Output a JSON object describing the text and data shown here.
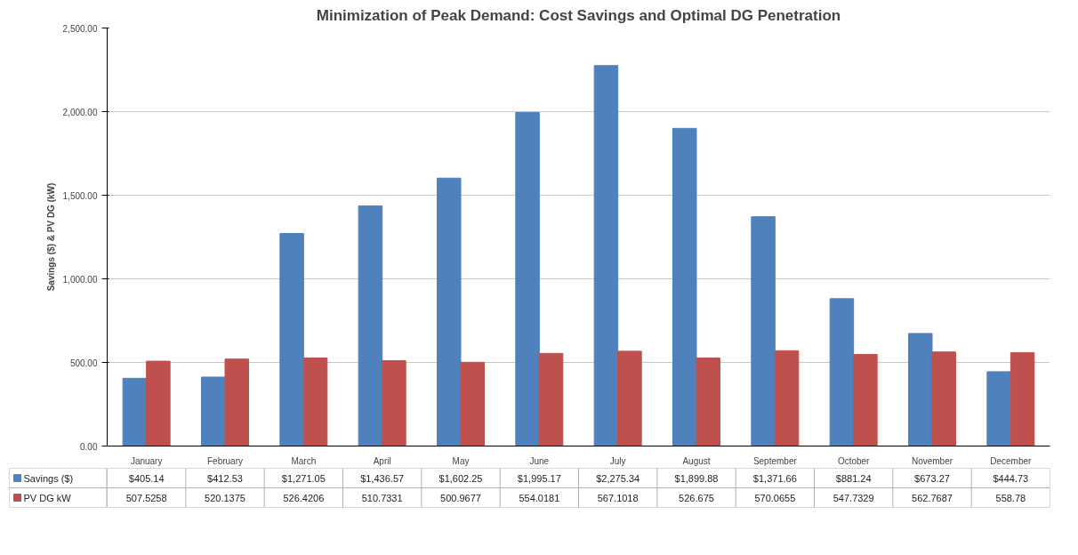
{
  "chart_data": {
    "type": "bar",
    "title": "Minimization of Peak Demand: Cost Savings and Optimal DG Penetration",
    "ylabel": "Savings ($) & PV DG (kW)",
    "categories": [
      "January",
      "February",
      "March",
      "April",
      "May",
      "June",
      "July",
      "August",
      "September",
      "October",
      "November",
      "December"
    ],
    "series": [
      {
        "name": "Savings ($)",
        "color": "#4f81bd",
        "values": [
          405.14,
          412.53,
          1271.05,
          1436.57,
          1602.25,
          1995.17,
          2275.34,
          1899.88,
          1371.66,
          881.24,
          673.27,
          444.73
        ],
        "value_labels": [
          "$405.14",
          "$412.53",
          "$1,271.05",
          "$1,436.57",
          "$1,602.25",
          "$1,995.17",
          "$2,275.34",
          "$1,899.88",
          "$1,371.66",
          "$881.24",
          "$673.27",
          "$444.73"
        ]
      },
      {
        "name": "PV DG kW",
        "color": "#c0504d",
        "values": [
          507.5258,
          520.1375,
          526.4206,
          510.7331,
          500.9677,
          554.0181,
          567.1018,
          526.675,
          570.0655,
          547.7329,
          562.7687,
          558.78
        ],
        "value_labels": [
          "507.5258",
          "520.1375",
          "526.4206",
          "510.7331",
          "500.9677",
          "554.0181",
          "567.1018",
          "526.675",
          "570.0655",
          "547.7329",
          "562.7687",
          "558.78"
        ]
      }
    ],
    "ylim": [
      0,
      2500
    ],
    "yticks": [
      {
        "value": 0,
        "label": "0.00"
      },
      {
        "value": 500,
        "label": "500.00"
      },
      {
        "value": 1000,
        "label": "1,000.00"
      },
      {
        "value": 1500,
        "label": "1,500.00"
      },
      {
        "value": 2000,
        "label": "2,000.00"
      },
      {
        "value": 2500,
        "label": "2,500.00"
      }
    ],
    "grid": "y",
    "legend": "bottom"
  }
}
